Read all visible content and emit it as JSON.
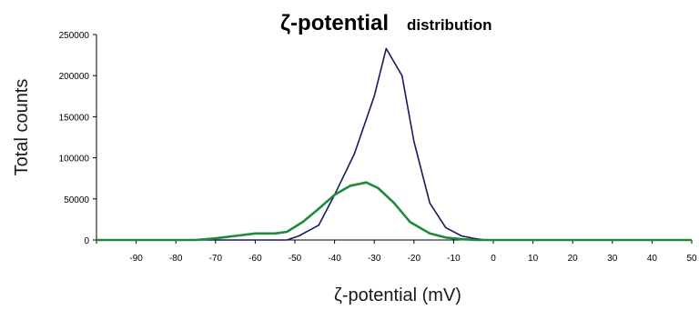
{
  "chart_data": {
    "type": "line",
    "title": "ζ-potential",
    "subtitle": "distribution",
    "xlabel": "ζ-potential  (mV)",
    "ylabel": "Total  counts",
    "xlim": [
      -100,
      50
    ],
    "ylim": [
      0,
      250000
    ],
    "xticks": [
      -90,
      -80,
      -70,
      -60,
      -50,
      -40,
      -30,
      -20,
      -10,
      0,
      10,
      20,
      30,
      40,
      50
    ],
    "yticks": [
      0,
      50000,
      100000,
      150000,
      200000,
      250000
    ],
    "grid": false,
    "legend": "none",
    "series": [
      {
        "color": "#1a1a5e",
        "x": [
          -100,
          -52,
          -49,
          -44,
          -40,
          -35,
          -30,
          -27,
          -23,
          -20,
          -16,
          -12,
          -8,
          -5,
          -2,
          50
        ],
        "y": [
          0,
          0,
          5000,
          18000,
          55000,
          105000,
          175000,
          233000,
          200000,
          120000,
          45000,
          15000,
          5000,
          2000,
          0,
          0
        ]
      },
      {
        "color": "#1e8b3c",
        "x": [
          -100,
          -75,
          -70,
          -65,
          -60,
          -55,
          -52,
          -48,
          -44,
          -40,
          -36,
          -32,
          -29,
          -25,
          -21,
          -16,
          -12,
          -8,
          -4,
          50
        ],
        "y": [
          0,
          0,
          2000,
          5000,
          8000,
          8000,
          10000,
          22000,
          38000,
          55000,
          66000,
          70000,
          63000,
          45000,
          22000,
          8000,
          3000,
          1000,
          0,
          0
        ]
      }
    ]
  }
}
